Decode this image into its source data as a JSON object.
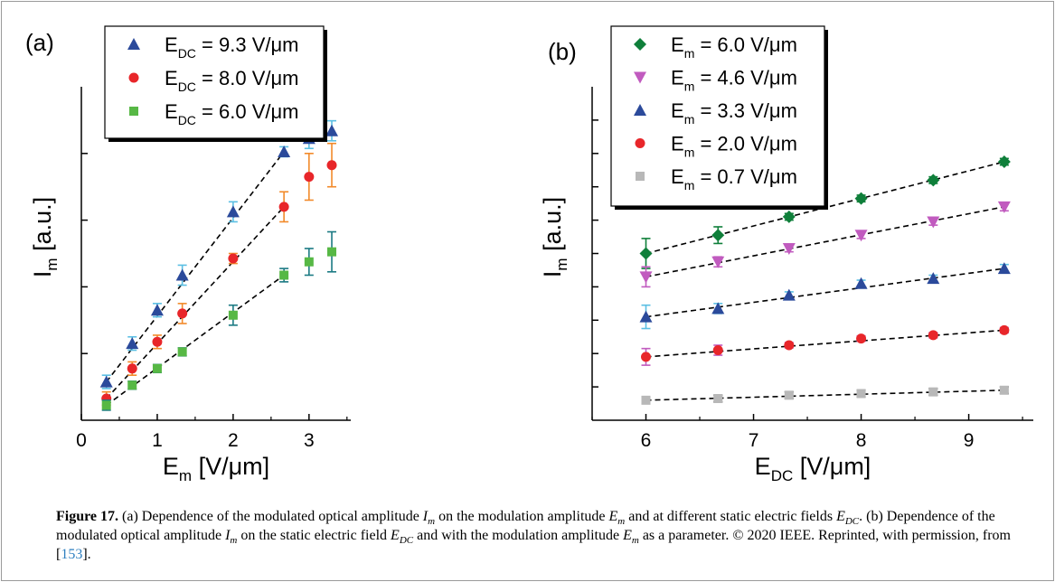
{
  "figure": {
    "caption_label": "Figure 17.",
    "caption_parts": [
      " (a) Dependence of the modulated optical amplitude ",
      " on the modulation amplitude ",
      " and at different static electric fields ",
      ". (b) Dependence of the modulated optical amplitude ",
      " on the static electric field ",
      " and with the modulation amplitude ",
      " as a parameter. © 2020 IEEE. Reprinted, with permission, from [",
      "]."
    ],
    "caption_symbols": {
      "I": "I",
      "I_sub": "m",
      "E": "E",
      "E_sub_m": "m",
      "E_sub_dc": "DC"
    },
    "caption_ref": "153"
  },
  "chart_data": [
    {
      "panel": "(a)",
      "type": "scatter",
      "xlabel": "E",
      "xlabel_sub": "m",
      "xlabel_unit": " [V/μm]",
      "ylabel": "I",
      "ylabel_sub": "m",
      "ylabel_unit": " [a.u.]",
      "xlim": [
        0,
        3.55
      ],
      "ylim": [
        0,
        1.0
      ],
      "xticks": [
        "0",
        "1",
        "2",
        "3"
      ],
      "xtick_values": [
        0,
        1,
        2,
        3
      ],
      "ytick_values": [
        0.2,
        0.4,
        0.6,
        0.8
      ],
      "ytick_labels_shown": false,
      "grid": false,
      "legend_position": "top-left",
      "series": [
        {
          "legend_base": "E",
          "legend_sub": "DC",
          "legend_value": " = 9.3 V/μm",
          "marker": "triangle",
          "color": "#2b4a9b",
          "errcolor": "#5bbfe3",
          "x": [
            0.33,
            0.67,
            1.0,
            1.33,
            2.0,
            2.67,
            3.0,
            3.3
          ],
          "y": [
            0.115,
            0.23,
            0.33,
            0.435,
            0.625,
            0.805,
            0.845,
            0.868
          ],
          "err": [
            0.02,
            0.02,
            0.02,
            0.03,
            0.03,
            0.015,
            0.03,
            0.03
          ],
          "fit_x": [
            0.33,
            2.67
          ]
        },
        {
          "legend_base": "E",
          "legend_sub": "DC",
          "legend_value": " = 8.0 V/μm",
          "marker": "circle",
          "color": "#e8262a",
          "errcolor": "#f28a2a",
          "x": [
            0.33,
            0.67,
            1.0,
            1.33,
            2.0,
            2.67,
            3.0,
            3.3
          ],
          "y": [
            0.065,
            0.155,
            0.235,
            0.32,
            0.485,
            0.64,
            0.73,
            0.765
          ],
          "err": [
            0.02,
            0.02,
            0.02,
            0.03,
            0.015,
            0.045,
            0.07,
            0.065
          ],
          "fit_x": [
            0.33,
            2.67
          ]
        },
        {
          "legend_base": "E",
          "legend_sub": "DC",
          "legend_value": " = 6.0 V/μm",
          "marker": "square",
          "color": "#57b845",
          "errcolor": "#1b7a83",
          "x": [
            0.33,
            0.67,
            1.0,
            1.33,
            2.0,
            2.67,
            3.0,
            3.3
          ],
          "y": [
            0.045,
            0.105,
            0.155,
            0.205,
            0.315,
            0.435,
            0.475,
            0.505
          ],
          "err": [
            0.015,
            0.012,
            0.012,
            0.012,
            0.03,
            0.02,
            0.04,
            0.06
          ],
          "fit_x": [
            0.33,
            2.67
          ]
        }
      ]
    },
    {
      "panel": "(b)",
      "type": "scatter",
      "xlabel": "E",
      "xlabel_sub": "DC",
      "xlabel_unit": " [V/μm]",
      "ylabel": "I",
      "ylabel_sub": "m",
      "ylabel_unit": " [a.u.]",
      "xlim": [
        5.5,
        9.6
      ],
      "ylim": [
        0,
        1.0
      ],
      "xticks": [
        "6",
        "7",
        "8",
        "9"
      ],
      "xtick_values": [
        6,
        7,
        8,
        9
      ],
      "ytick_values": [
        0.1,
        0.2,
        0.3,
        0.4,
        0.5,
        0.6,
        0.7,
        0.8,
        0.9
      ],
      "ytick_labels_shown": false,
      "grid": false,
      "legend_position": "top-left",
      "series": [
        {
          "legend_base": "E",
          "legend_sub": "m",
          "legend_value": " = 6.0 V/μm",
          "marker": "diamond",
          "color": "#0f7f3a",
          "errcolor": "#0f7f3a",
          "x": [
            6.0,
            6.67,
            7.33,
            8.0,
            8.67,
            9.33
          ],
          "y": [
            0.5,
            0.555,
            0.61,
            0.665,
            0.72,
            0.775
          ],
          "err": [
            0.045,
            0.025,
            0.01,
            0.01,
            0.01,
            0.01
          ],
          "fit_x": [
            6.0,
            9.33
          ]
        },
        {
          "legend_base": "E",
          "legend_sub": "m",
          "legend_value": " = 4.6 V/μm",
          "marker": "triangle-down",
          "color": "#c15bbf",
          "errcolor": "#c15bbf",
          "x": [
            6.0,
            6.67,
            7.33,
            8.0,
            8.67,
            9.33
          ],
          "y": [
            0.43,
            0.475,
            0.515,
            0.555,
            0.595,
            0.64
          ],
          "err": [
            0.03,
            0.015,
            0.01,
            0.01,
            0.01,
            0.012
          ],
          "fit_x": [
            6.0,
            9.33
          ]
        },
        {
          "legend_base": "E",
          "legend_sub": "m",
          "legend_value": " = 3.3 V/μm",
          "marker": "triangle",
          "color": "#2b4a9b",
          "errcolor": "#5bbfe3",
          "x": [
            6.0,
            6.67,
            7.33,
            8.0,
            8.67,
            9.33
          ],
          "y": [
            0.31,
            0.335,
            0.375,
            0.41,
            0.425,
            0.455
          ],
          "err": [
            0.035,
            0.015,
            0.01,
            0.01,
            0.01,
            0.012
          ],
          "fit_x": [
            6.0,
            9.33
          ]
        },
        {
          "legend_base": "E",
          "legend_sub": "m",
          "legend_value": " = 2.0 V/μm",
          "marker": "circle",
          "color": "#e8262a",
          "errcolor": "#c15bbf",
          "x": [
            6.0,
            6.67,
            7.33,
            8.0,
            8.67,
            9.33
          ],
          "y": [
            0.19,
            0.21,
            0.225,
            0.245,
            0.255,
            0.27
          ],
          "err": [
            0.025,
            0.015,
            0.008,
            0.008,
            0.008,
            0.008
          ],
          "fit_x": [
            6.0,
            9.33
          ]
        },
        {
          "legend_base": "E",
          "legend_sub": "m",
          "legend_value": " = 0.7 V/μm",
          "marker": "square",
          "color": "#b8b8b8",
          "errcolor": "#222222",
          "x": [
            6.0,
            6.67,
            7.33,
            8.0,
            8.67,
            9.33
          ],
          "y": [
            0.06,
            0.065,
            0.075,
            0.08,
            0.085,
            0.09
          ],
          "err": [
            0.01,
            0.01,
            0.01,
            0.01,
            0.01,
            0.01
          ],
          "fit_x": [
            6.0,
            9.33
          ]
        }
      ]
    }
  ]
}
